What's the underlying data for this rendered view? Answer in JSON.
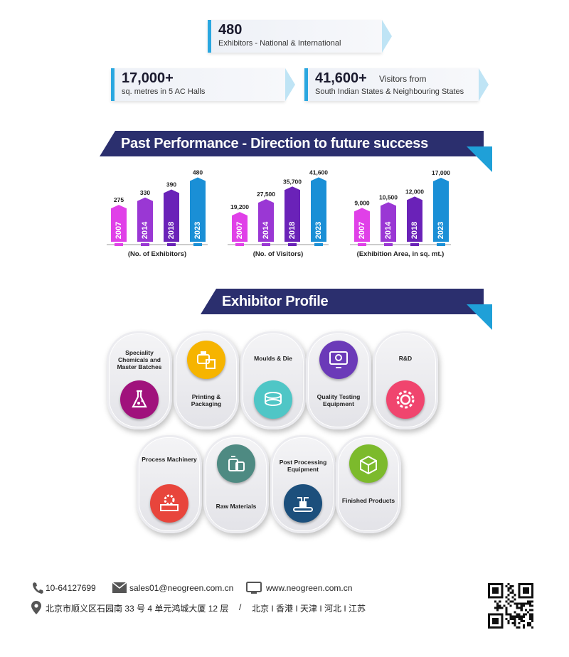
{
  "stats": {
    "exhibitors": {
      "value": "480",
      "label": "Exhibitors - National & International"
    },
    "area": {
      "value": "17,000+",
      "label": "sq. metres in 5 AC Halls"
    },
    "visitors": {
      "value": "41,600+",
      "side": "Visitors from",
      "label": "South Indian States & Neighbouring States"
    }
  },
  "performance": {
    "title": "Past Performance - Direction to future success"
  },
  "chart_data": [
    {
      "type": "bar",
      "categories": [
        "2007",
        "2014",
        "2018",
        "2023"
      ],
      "values": [
        275,
        330,
        390,
        480
      ],
      "value_labels": [
        "275",
        "330",
        "390",
        "480"
      ],
      "xlabel": "(No. of Exhibitors)",
      "ylim": [
        0,
        520
      ],
      "colors": [
        "#e040e8",
        "#9a37d4",
        "#6a22b8",
        "#1a8fd6"
      ]
    },
    {
      "type": "bar",
      "categories": [
        "2007",
        "2014",
        "2018",
        "2023"
      ],
      "values": [
        19200,
        27500,
        35700,
        41600
      ],
      "value_labels": [
        "19,200",
        "27,500",
        "35,700",
        "41,600"
      ],
      "xlabel": "(No. of Visitors)",
      "ylim": [
        0,
        45000
      ],
      "colors": [
        "#e040e8",
        "#9a37d4",
        "#6a22b8",
        "#1a8fd6"
      ]
    },
    {
      "type": "bar",
      "categories": [
        "2007",
        "2014",
        "2018",
        "2023"
      ],
      "values": [
        9000,
        10500,
        12000,
        17000
      ],
      "value_labels": [
        "9,000",
        "10,500",
        "12,000",
        "17,000"
      ],
      "xlabel": "(Exhibition Area, in sq. mt.)",
      "ylim": [
        0,
        18500
      ],
      "colors": [
        "#e040e8",
        "#9a37d4",
        "#6a22b8",
        "#1a8fd6"
      ]
    }
  ],
  "profile": {
    "title": "Exhibitor Profile",
    "items": [
      {
        "label": "Speciality Chemicals and Master Batches",
        "icon": "chemical-flask-icon",
        "color": "#a0127c"
      },
      {
        "label": "Printing & Packaging",
        "icon": "printer-box-icon",
        "color": "#f6b400"
      },
      {
        "label": "Moulds & Die",
        "icon": "mould-discs-icon",
        "color": "#4fc6c6"
      },
      {
        "label": "Quality Testing Equipment",
        "icon": "testing-monitor-icon",
        "color": "#6b3ab8"
      },
      {
        "label": "R&D",
        "icon": "research-gear-icon",
        "color": "#f0456e"
      },
      {
        "label": "Process Machinery",
        "icon": "machine-gear-icon",
        "color": "#e8453c"
      },
      {
        "label": "Raw Materials",
        "icon": "raw-material-sacks-icon",
        "color": "#4e8a82"
      },
      {
        "label": "Post Processing Equipment",
        "icon": "conveyor-robot-icon",
        "color": "#1c4f7c"
      },
      {
        "label": "Finished Products",
        "icon": "product-box-icon",
        "color": "#7cba2c"
      }
    ]
  },
  "footer": {
    "phone": "10-64127699",
    "email": "sales01@neogreen.com.cn",
    "website": "www.neogreen.com.cn",
    "address": "北京市顺义区石园南 33 号 4 单元鸿城大厦 12 层",
    "separator": "/",
    "cities": "北京 Ι 香港 Ι 天津 Ι 河北 Ι 江苏"
  }
}
